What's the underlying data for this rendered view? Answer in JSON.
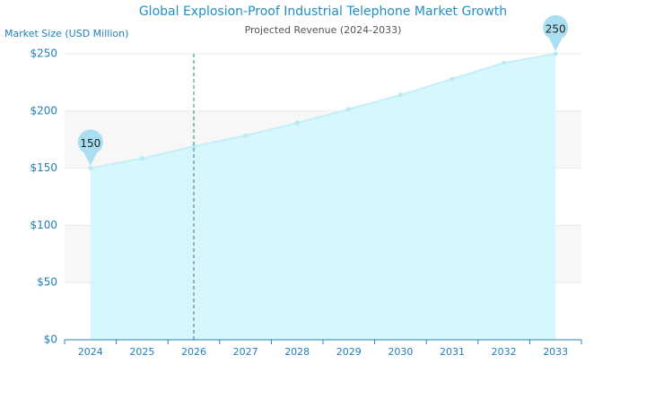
{
  "chart_data": {
    "type": "area",
    "title": "Global Explosion-Proof Industrial Telephone Market Growth",
    "subtitle": "Projected Revenue (2024-2033)",
    "y_label": "Market Size (USD Million)",
    "categories": [
      "2024",
      "2025",
      "2026",
      "2027",
      "2028",
      "2029",
      "2030",
      "2031",
      "2032",
      "2033"
    ],
    "values": [
      150,
      158.5,
      169,
      178.5,
      189.5,
      201.5,
      214,
      228,
      242,
      250
    ],
    "color": "#d2f6fc",
    "line_color": "#c4eff9",
    "ylim": [
      0,
      250
    ],
    "yticks": [
      {
        "value": 0,
        "label": "$0"
      },
      {
        "value": 50,
        "label": "$50"
      },
      {
        "value": 100,
        "label": "$100"
      },
      {
        "value": 150,
        "label": "$150"
      },
      {
        "value": 200,
        "label": "$200"
      },
      {
        "value": 250,
        "label": "$250"
      }
    ],
    "grid": true,
    "crosshair": "2026"
  }
}
